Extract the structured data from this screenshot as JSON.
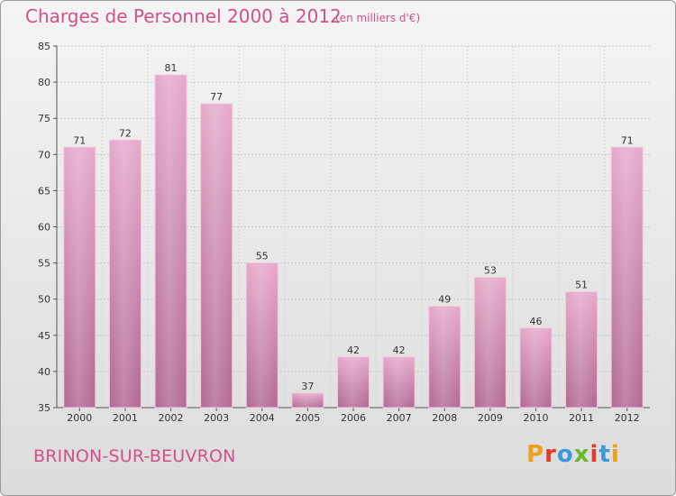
{
  "header": {
    "title": "Charges de Personnel 2000 à 2012",
    "subtitle": "(en milliers d'€)"
  },
  "footer": {
    "commune": "BRINON-SUR-BEUVRON",
    "logo": {
      "letters": [
        "P",
        "r",
        "o",
        "x",
        "i",
        "t",
        "i"
      ],
      "colors": [
        "#f0a020",
        "#e23a2a",
        "#3a9ad9",
        "#6ab82e",
        "#e23a2a",
        "#3a9ad9",
        "#f0a020"
      ]
    }
  },
  "chart_data": {
    "type": "bar",
    "categories": [
      "2000",
      "2001",
      "2002",
      "2003",
      "2004",
      "2005",
      "2006",
      "2007",
      "2008",
      "2009",
      "2010",
      "2011",
      "2012"
    ],
    "values": [
      71,
      72,
      81,
      77,
      55,
      37,
      42,
      42,
      49,
      53,
      46,
      51,
      71
    ],
    "title": "Charges de Personnel 2000 à 2012",
    "ylim": [
      35,
      85
    ],
    "yticks": [
      35,
      40,
      45,
      50,
      55,
      60,
      65,
      70,
      75,
      80,
      85
    ],
    "grid": true,
    "bar_color": "#d98ab4",
    "data_labels": true
  }
}
